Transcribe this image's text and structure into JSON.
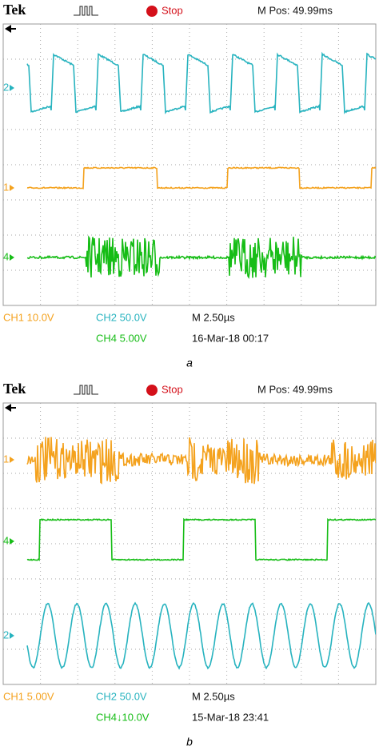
{
  "panels": [
    {
      "header": {
        "brand": "Tek",
        "status": "Stop",
        "position": "M Pos: 49.99ms"
      },
      "channel_markers": [
        "2",
        "1",
        "4"
      ],
      "readouts": {
        "ch1": "CH1  10.0V",
        "ch2": "CH2  50.0V",
        "timebase": "M 2.50µs",
        "ch4": "CH4  5.00V",
        "timestamp": "16-Mar-18 00:17"
      },
      "caption": "a"
    },
    {
      "header": {
        "brand": "Tek",
        "status": "Stop",
        "position": "M Pos: 49.99ms"
      },
      "channel_markers": [
        "1",
        "4",
        "2"
      ],
      "readouts": {
        "ch1": "CH1  5.00V",
        "ch2": "CH2  50.0V",
        "timebase": "M 2.50µs",
        "ch4": "CH4↓10.0V",
        "timestamp": "15-Mar-18 23:41"
      },
      "caption": "b"
    }
  ]
}
